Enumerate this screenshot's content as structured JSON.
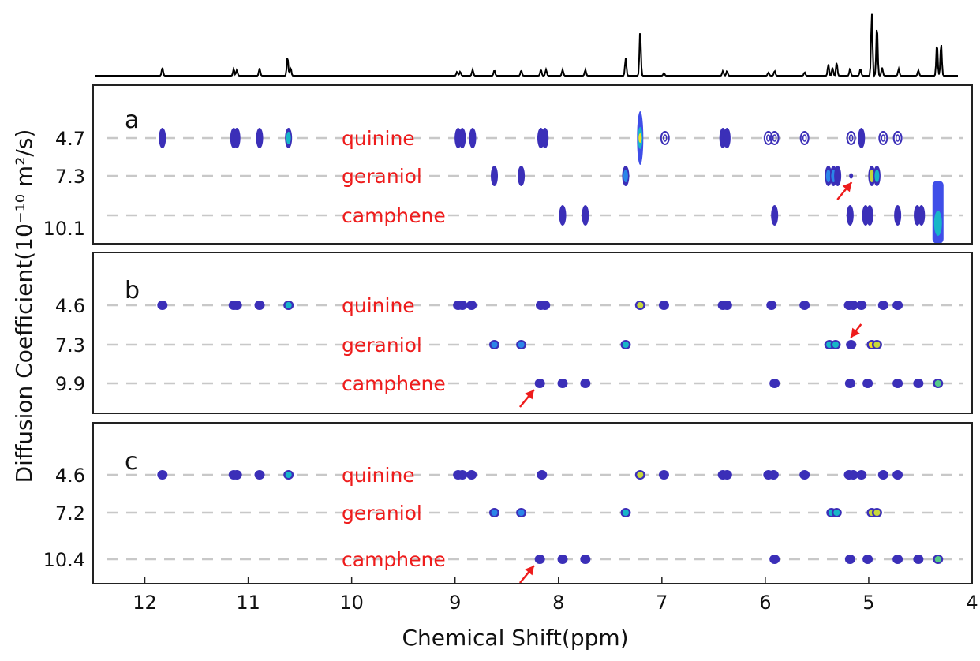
{
  "chart_data": {
    "type": "scatter",
    "xlabel": "Chemical Shift(ppm)",
    "ylabel": "Diffusion Coefficient(10⁻¹⁰ m²/s)",
    "xlim": [
      12.5,
      4
    ],
    "x_ticks": [
      "12",
      "11",
      "10",
      "9",
      "8",
      "7",
      "6",
      "5",
      "4"
    ],
    "top_spectrum_peaks": [
      {
        "ppm": 11.83,
        "h": 0.12
      },
      {
        "ppm": 11.14,
        "h": 0.1
      },
      {
        "ppm": 11.11,
        "h": 0.08
      },
      {
        "ppm": 10.89,
        "h": 0.11
      },
      {
        "ppm": 10.62,
        "h": 0.28
      },
      {
        "ppm": 10.59,
        "h": 0.12
      },
      {
        "ppm": 8.98,
        "h": 0.06
      },
      {
        "ppm": 8.95,
        "h": 0.06
      },
      {
        "ppm": 8.83,
        "h": 0.09
      },
      {
        "ppm": 8.62,
        "h": 0.08
      },
      {
        "ppm": 8.36,
        "h": 0.08
      },
      {
        "ppm": 8.17,
        "h": 0.09
      },
      {
        "ppm": 8.12,
        "h": 0.09
      },
      {
        "ppm": 7.96,
        "h": 0.09
      },
      {
        "ppm": 7.74,
        "h": 0.09
      },
      {
        "ppm": 7.35,
        "h": 0.26
      },
      {
        "ppm": 7.21,
        "h": 0.66
      },
      {
        "ppm": 6.98,
        "h": 0.04
      },
      {
        "ppm": 6.41,
        "h": 0.07
      },
      {
        "ppm": 6.37,
        "h": 0.07
      },
      {
        "ppm": 5.97,
        "h": 0.05
      },
      {
        "ppm": 5.91,
        "h": 0.07
      },
      {
        "ppm": 5.62,
        "h": 0.05
      },
      {
        "ppm": 5.39,
        "h": 0.17
      },
      {
        "ppm": 5.35,
        "h": 0.12
      },
      {
        "ppm": 5.31,
        "h": 0.2
      },
      {
        "ppm": 5.18,
        "h": 0.1
      },
      {
        "ppm": 5.08,
        "h": 0.1
      },
      {
        "ppm": 4.97,
        "h": 0.92
      },
      {
        "ppm": 4.92,
        "h": 0.75
      },
      {
        "ppm": 4.87,
        "h": 0.12
      },
      {
        "ppm": 4.71,
        "h": 0.1
      },
      {
        "ppm": 4.52,
        "h": 0.08
      },
      {
        "ppm": 4.34,
        "h": 0.48
      },
      {
        "ppm": 4.3,
        "h": 0.48
      }
    ],
    "panels": [
      {
        "label": "a",
        "rows": [
          {
            "name": "quinine",
            "D_label": "4.7"
          },
          {
            "name": "geraniol",
            "D_label": "7.3"
          },
          {
            "name": "camphene",
            "D_label": "10.1"
          }
        ],
        "bottom_label": "10.1",
        "peaks": [
          {
            "row": 0,
            "ppm": 11.83,
            "i": 0.25,
            "s": "tall"
          },
          {
            "row": 0,
            "ppm": 11.14,
            "i": 0.2,
            "s": "tall"
          },
          {
            "row": 0,
            "ppm": 11.11,
            "i": 0.2,
            "s": "tall"
          },
          {
            "row": 0,
            "ppm": 10.89,
            "i": 0.2,
            "s": "tall"
          },
          {
            "row": 0,
            "ppm": 10.61,
            "i": 0.45,
            "s": "tall"
          },
          {
            "row": 0,
            "ppm": 8.97,
            "i": 0.15,
            "s": "tall"
          },
          {
            "row": 0,
            "ppm": 8.93,
            "i": 0.15,
            "s": "tall"
          },
          {
            "row": 0,
            "ppm": 8.83,
            "i": 0.2,
            "s": "tall"
          },
          {
            "row": 0,
            "ppm": 8.17,
            "i": 0.2,
            "s": "tall"
          },
          {
            "row": 0,
            "ppm": 8.13,
            "i": 0.2,
            "s": "tall"
          },
          {
            "row": 0,
            "ppm": 7.21,
            "i": 0.95,
            "s": "spike"
          },
          {
            "row": 0,
            "ppm": 6.97,
            "i": 0.1,
            "s": "ring"
          },
          {
            "row": 0,
            "ppm": 6.41,
            "i": 0.2,
            "s": "tall"
          },
          {
            "row": 0,
            "ppm": 6.37,
            "i": 0.2,
            "s": "tall"
          },
          {
            "row": 0,
            "ppm": 5.97,
            "i": 0.1,
            "s": "ring"
          },
          {
            "row": 0,
            "ppm": 5.91,
            "i": 0.1,
            "s": "ring"
          },
          {
            "row": 0,
            "ppm": 5.62,
            "i": 0.1,
            "s": "ring"
          },
          {
            "row": 0,
            "ppm": 5.17,
            "i": 0.1,
            "s": "ring"
          },
          {
            "row": 0,
            "ppm": 5.07,
            "i": 0.2,
            "s": "tall"
          },
          {
            "row": 0,
            "ppm": 4.86,
            "i": 0.1,
            "s": "ring"
          },
          {
            "row": 0,
            "ppm": 4.72,
            "i": 0.1,
            "s": "ring"
          },
          {
            "row": 1,
            "ppm": 8.62,
            "i": 0.2,
            "s": "tall"
          },
          {
            "row": 1,
            "ppm": 8.36,
            "i": 0.2,
            "s": "tall"
          },
          {
            "row": 1,
            "ppm": 7.35,
            "i": 0.35,
            "s": "tall"
          },
          {
            "row": 1,
            "ppm": 5.39,
            "i": 0.35,
            "s": "tall"
          },
          {
            "row": 1,
            "ppm": 5.34,
            "i": 0.35,
            "s": "tall"
          },
          {
            "row": 1,
            "ppm": 5.3,
            "i": 0.3,
            "s": "tall"
          },
          {
            "row": 1,
            "ppm": 5.17,
            "i": 0.1,
            "s": "dot"
          },
          {
            "row": 1,
            "ppm": 4.97,
            "i": 0.9,
            "s": "tall"
          },
          {
            "row": 1,
            "ppm": 4.92,
            "i": 0.5,
            "s": "tall"
          },
          {
            "row": 2,
            "ppm": 7.96,
            "i": 0.15,
            "s": "tall"
          },
          {
            "row": 2,
            "ppm": 7.74,
            "i": 0.15,
            "s": "tall"
          },
          {
            "row": 2,
            "ppm": 5.91,
            "i": 0.15,
            "s": "tall"
          },
          {
            "row": 2,
            "ppm": 5.18,
            "i": 0.15,
            "s": "tall"
          },
          {
            "row": 2,
            "ppm": 5.03,
            "i": 0.2,
            "s": "tall"
          },
          {
            "row": 2,
            "ppm": 4.99,
            "i": 0.2,
            "s": "tall"
          },
          {
            "row": 2,
            "ppm": 4.72,
            "i": 0.1,
            "s": "tall"
          },
          {
            "row": 2,
            "ppm": 4.53,
            "i": 0.2,
            "s": "tall"
          },
          {
            "row": 2,
            "ppm": 4.49,
            "i": 0.2,
            "s": "tall"
          },
          {
            "row": 2,
            "ppm": 4.33,
            "i": 0.55,
            "s": "column"
          }
        ],
        "arrows": [
          {
            "row": 1,
            "ppm": 5.15,
            "dir": "up"
          }
        ]
      },
      {
        "label": "b",
        "rows": [
          {
            "name": "quinine",
            "D_label": "4.6"
          },
          {
            "name": "geraniol",
            "D_label": "7.3"
          },
          {
            "name": "camphene",
            "D_label": "9.9"
          }
        ],
        "peaks": [
          {
            "row": 0,
            "ppm": 11.83,
            "i": 0.3
          },
          {
            "row": 0,
            "ppm": 11.14,
            "i": 0.3
          },
          {
            "row": 0,
            "ppm": 11.11,
            "i": 0.3
          },
          {
            "row": 0,
            "ppm": 10.89,
            "i": 0.3
          },
          {
            "row": 0,
            "ppm": 10.61,
            "i": 0.5
          },
          {
            "row": 0,
            "ppm": 8.97,
            "i": 0.2
          },
          {
            "row": 0,
            "ppm": 8.93,
            "i": 0.2
          },
          {
            "row": 0,
            "ppm": 8.84,
            "i": 0.3
          },
          {
            "row": 0,
            "ppm": 8.17,
            "i": 0.3
          },
          {
            "row": 0,
            "ppm": 8.13,
            "i": 0.3
          },
          {
            "row": 0,
            "ppm": 7.21,
            "i": 0.75
          },
          {
            "row": 0,
            "ppm": 6.98,
            "i": 0.15
          },
          {
            "row": 0,
            "ppm": 6.41,
            "i": 0.3
          },
          {
            "row": 0,
            "ppm": 6.37,
            "i": 0.3
          },
          {
            "row": 0,
            "ppm": 5.94,
            "i": 0.3
          },
          {
            "row": 0,
            "ppm": 5.62,
            "i": 0.2
          },
          {
            "row": 0,
            "ppm": 5.19,
            "i": 0.3
          },
          {
            "row": 0,
            "ppm": 5.15,
            "i": 0.3
          },
          {
            "row": 0,
            "ppm": 5.07,
            "i": 0.3
          },
          {
            "row": 0,
            "ppm": 4.86,
            "i": 0.2
          },
          {
            "row": 0,
            "ppm": 4.72,
            "i": 0.2
          },
          {
            "row": 1,
            "ppm": 8.62,
            "i": 0.4
          },
          {
            "row": 1,
            "ppm": 8.36,
            "i": 0.4
          },
          {
            "row": 1,
            "ppm": 7.35,
            "i": 0.5
          },
          {
            "row": 1,
            "ppm": 5.38,
            "i": 0.5
          },
          {
            "row": 1,
            "ppm": 5.32,
            "i": 0.5
          },
          {
            "row": 1,
            "ppm": 5.17,
            "i": 0.1
          },
          {
            "row": 1,
            "ppm": 4.97,
            "i": 0.95
          },
          {
            "row": 1,
            "ppm": 4.92,
            "i": 0.9
          },
          {
            "row": 2,
            "ppm": 8.18,
            "i": 0.2
          },
          {
            "row": 2,
            "ppm": 7.96,
            "i": 0.3
          },
          {
            "row": 2,
            "ppm": 7.74,
            "i": 0.3
          },
          {
            "row": 2,
            "ppm": 5.91,
            "i": 0.3
          },
          {
            "row": 2,
            "ppm": 5.18,
            "i": 0.3
          },
          {
            "row": 2,
            "ppm": 5.01,
            "i": 0.35
          },
          {
            "row": 2,
            "ppm": 4.72,
            "i": 0.2
          },
          {
            "row": 2,
            "ppm": 4.52,
            "i": 0.35
          },
          {
            "row": 2,
            "ppm": 4.33,
            "i": 0.6
          }
        ],
        "arrows": [
          {
            "row": 1,
            "ppm": 5.18,
            "dir": "down"
          },
          {
            "row": 2,
            "ppm": 8.22,
            "dir": "up"
          }
        ]
      },
      {
        "label": "c",
        "rows": [
          {
            "name": "quinine",
            "D_label": "4.6"
          },
          {
            "name": "geraniol",
            "D_label": "7.2"
          },
          {
            "name": "camphene",
            "D_label": "10.4"
          }
        ],
        "peaks": [
          {
            "row": 0,
            "ppm": 11.83,
            "i": 0.3
          },
          {
            "row": 0,
            "ppm": 11.14,
            "i": 0.3
          },
          {
            "row": 0,
            "ppm": 11.11,
            "i": 0.3
          },
          {
            "row": 0,
            "ppm": 10.89,
            "i": 0.3
          },
          {
            "row": 0,
            "ppm": 10.61,
            "i": 0.55
          },
          {
            "row": 0,
            "ppm": 8.97,
            "i": 0.2
          },
          {
            "row": 0,
            "ppm": 8.93,
            "i": 0.2
          },
          {
            "row": 0,
            "ppm": 8.84,
            "i": 0.3
          },
          {
            "row": 0,
            "ppm": 8.16,
            "i": 0.3
          },
          {
            "row": 0,
            "ppm": 7.21,
            "i": 0.85
          },
          {
            "row": 0,
            "ppm": 6.98,
            "i": 0.2
          },
          {
            "row": 0,
            "ppm": 6.41,
            "i": 0.3
          },
          {
            "row": 0,
            "ppm": 6.37,
            "i": 0.3
          },
          {
            "row": 0,
            "ppm": 5.97,
            "i": 0.3
          },
          {
            "row": 0,
            "ppm": 5.92,
            "i": 0.3
          },
          {
            "row": 0,
            "ppm": 5.62,
            "i": 0.2
          },
          {
            "row": 0,
            "ppm": 5.19,
            "i": 0.3
          },
          {
            "row": 0,
            "ppm": 5.15,
            "i": 0.3
          },
          {
            "row": 0,
            "ppm": 5.07,
            "i": 0.3
          },
          {
            "row": 0,
            "ppm": 4.86,
            "i": 0.2
          },
          {
            "row": 0,
            "ppm": 4.72,
            "i": 0.2
          },
          {
            "row": 1,
            "ppm": 8.62,
            "i": 0.4
          },
          {
            "row": 1,
            "ppm": 8.36,
            "i": 0.4
          },
          {
            "row": 1,
            "ppm": 7.35,
            "i": 0.45
          },
          {
            "row": 1,
            "ppm": 5.36,
            "i": 0.45
          },
          {
            "row": 1,
            "ppm": 5.31,
            "i": 0.45
          },
          {
            "row": 1,
            "ppm": 4.97,
            "i": 0.9
          },
          {
            "row": 1,
            "ppm": 4.92,
            "i": 0.75
          },
          {
            "row": 2,
            "ppm": 8.18,
            "i": 0.2
          },
          {
            "row": 2,
            "ppm": 7.96,
            "i": 0.3
          },
          {
            "row": 2,
            "ppm": 7.74,
            "i": 0.3
          },
          {
            "row": 2,
            "ppm": 5.91,
            "i": 0.3
          },
          {
            "row": 2,
            "ppm": 5.18,
            "i": 0.3
          },
          {
            "row": 2,
            "ppm": 5.01,
            "i": 0.35
          },
          {
            "row": 2,
            "ppm": 4.72,
            "i": 0.2
          },
          {
            "row": 2,
            "ppm": 4.52,
            "i": 0.35
          },
          {
            "row": 2,
            "ppm": 4.33,
            "i": 0.6
          }
        ],
        "arrows": [
          {
            "row": 2,
            "ppm": 8.22,
            "dir": "up"
          }
        ]
      }
    ],
    "colormap": [
      "#3b1fb5",
      "#3f4ee8",
      "#2b86e8",
      "#17b6c8",
      "#55cc88",
      "#c8d83a",
      "#f5e11e"
    ],
    "annotation_color": "#ee1c1c"
  }
}
